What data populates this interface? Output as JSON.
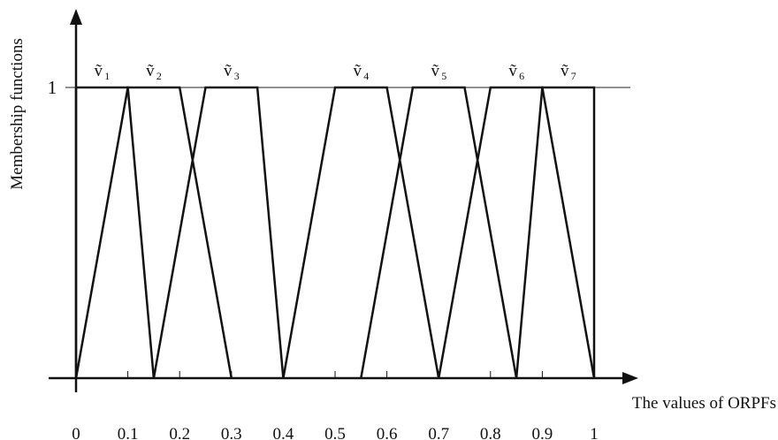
{
  "chart_data": {
    "type": "line",
    "title": "",
    "xlabel": "The values of ORPFs",
    "ylabel": "Membership functions",
    "xlim": [
      0,
      1
    ],
    "ylim": [
      0,
      1
    ],
    "x_ticks": [
      "0",
      "0.1",
      "0.2",
      "0.3",
      "0.4",
      "0.5",
      "0.6",
      "0.7",
      "0.8",
      "0.9",
      "1"
    ],
    "y_ticks": [
      "1"
    ],
    "grid": false,
    "series": [
      {
        "label_base": "ṽ",
        "label_sub": "1",
        "points": [
          [
            0,
            0
          ],
          [
            0,
            1
          ],
          [
            0.1,
            1
          ],
          [
            0.15,
            0
          ]
        ]
      },
      {
        "label_base": "ṽ",
        "label_sub": "2",
        "points": [
          [
            0,
            0
          ],
          [
            0.1,
            1
          ],
          [
            0.2,
            1
          ],
          [
            0.3,
            0
          ]
        ]
      },
      {
        "label_base": "ṽ",
        "label_sub": "3",
        "points": [
          [
            0.15,
            0
          ],
          [
            0.25,
            1
          ],
          [
            0.35,
            1
          ],
          [
            0.4,
            0
          ]
        ]
      },
      {
        "label_base": "ṽ",
        "label_sub": "4",
        "points": [
          [
            0.4,
            0
          ],
          [
            0.5,
            1
          ],
          [
            0.6,
            1
          ],
          [
            0.7,
            0
          ]
        ]
      },
      {
        "label_base": "ṽ",
        "label_sub": "5",
        "points": [
          [
            0.55,
            0
          ],
          [
            0.65,
            1
          ],
          [
            0.75,
            1
          ],
          [
            0.85,
            0
          ]
        ]
      },
      {
        "label_base": "ṽ",
        "label_sub": "6",
        "points": [
          [
            0.7,
            0
          ],
          [
            0.8,
            1
          ],
          [
            0.9,
            1
          ],
          [
            1,
            0
          ]
        ]
      },
      {
        "label_base": "ṽ",
        "label_sub": "7",
        "points": [
          [
            0.85,
            0
          ],
          [
            0.9,
            1
          ],
          [
            1,
            1
          ],
          [
            1,
            0
          ]
        ]
      }
    ]
  }
}
